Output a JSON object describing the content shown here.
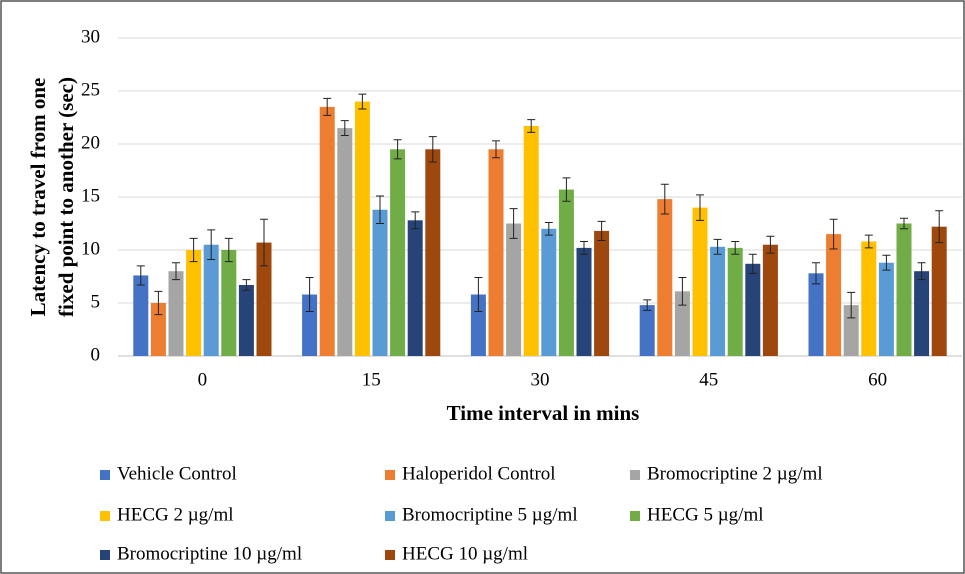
{
  "chart_data": {
    "type": "bar",
    "ylabel": [
      "Latency to travel from one",
      "fixed point to another (sec)"
    ],
    "xlabel": "Time interval in mins",
    "categories": [
      "0",
      "15",
      "30",
      "45",
      "60"
    ],
    "ylim": [
      0,
      30
    ],
    "yticks": [
      0,
      5,
      10,
      15,
      20,
      25,
      30
    ],
    "grid": true,
    "series": [
      {
        "name": "Vehicle Control",
        "color": "#4472c4",
        "values": [
          7.6,
          5.8,
          5.8,
          4.8,
          7.8
        ],
        "errors": [
          0.9,
          1.6,
          1.6,
          0.5,
          1.0
        ]
      },
      {
        "name": "Haloperidol Control",
        "color": "#ed7d31",
        "values": [
          5.0,
          23.5,
          19.5,
          14.8,
          11.5
        ],
        "errors": [
          1.1,
          0.8,
          0.8,
          1.4,
          1.4
        ]
      },
      {
        "name": "Bromocriptine 2 µg/ml",
        "color": "#a5a5a5",
        "values": [
          8.0,
          21.5,
          12.5,
          6.1,
          4.8
        ],
        "errors": [
          0.8,
          0.7,
          1.4,
          1.3,
          1.2
        ]
      },
      {
        "name": "HECG 2 µg/ml",
        "color": "#ffc000",
        "values": [
          10.0,
          24.0,
          21.7,
          14.0,
          10.8
        ],
        "errors": [
          1.1,
          0.7,
          0.6,
          1.2,
          0.6
        ]
      },
      {
        "name": "Bromocriptine 5 µg/ml",
        "color": "#5b9bd5",
        "values": [
          10.5,
          13.8,
          12.0,
          10.3,
          8.8
        ],
        "errors": [
          1.4,
          1.3,
          0.6,
          0.7,
          0.7
        ]
      },
      {
        "name": "HECG 5 µg/ml",
        "color": "#70ad47",
        "values": [
          10.0,
          19.5,
          15.7,
          10.2,
          12.5
        ],
        "errors": [
          1.1,
          0.9,
          1.1,
          0.6,
          0.5
        ]
      },
      {
        "name": "Bromocriptine 10 µg/ml",
        "color": "#264478",
        "values": [
          6.7,
          12.8,
          10.2,
          8.7,
          8.0
        ],
        "errors": [
          0.5,
          0.8,
          0.6,
          0.9,
          0.8
        ]
      },
      {
        "name": "HECG 10 µg/ml",
        "color": "#9e480e",
        "values": [
          10.7,
          19.5,
          11.8,
          10.5,
          12.2
        ],
        "errors": [
          2.2,
          1.2,
          0.9,
          0.8,
          1.5
        ]
      }
    ]
  }
}
